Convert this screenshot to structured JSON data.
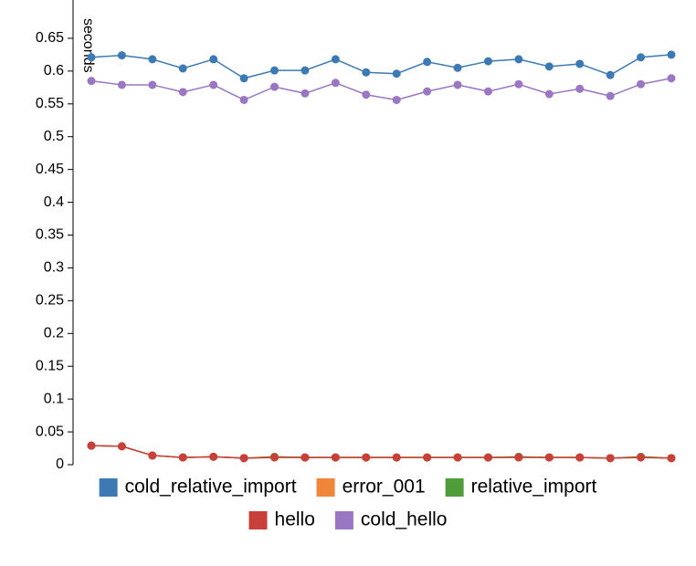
{
  "chart_data": {
    "type": "line",
    "y_label": "seconds",
    "x": [
      0,
      1,
      2,
      3,
      4,
      5,
      6,
      7,
      8,
      9,
      10,
      11,
      12,
      13,
      14,
      15,
      16,
      17,
      18,
      19
    ],
    "xlim": [
      0,
      19
    ],
    "ylim": [
      0,
      0.7
    ],
    "yticks": [
      0,
      0.05,
      0.1,
      0.15,
      0.2,
      0.25,
      0.3,
      0.35,
      0.4,
      0.45,
      0.5,
      0.55,
      0.6,
      0.65
    ],
    "series": [
      {
        "name": "cold_relative_import",
        "color": "#3d7ab3",
        "values": [
          0.621,
          0.624,
          0.618,
          0.604,
          0.618,
          0.589,
          0.601,
          0.601,
          0.618,
          0.598,
          0.596,
          0.614,
          0.605,
          0.615,
          0.618,
          0.607,
          0.611,
          0.594,
          0.621,
          0.625
        ]
      },
      {
        "name": "error_001",
        "color": "#f0863a",
        "values": [
          0.029,
          0.028,
          0.014,
          0.011,
          0.012,
          0.01,
          0.012,
          0.011,
          0.011,
          0.011,
          0.011,
          0.011,
          0.011,
          0.011,
          0.012,
          0.011,
          0.011,
          0.01,
          0.012,
          0.01
        ]
      },
      {
        "name": "relative_import",
        "color": "#4f9c3a",
        "values": [
          0.029,
          0.028,
          0.014,
          0.011,
          0.012,
          0.01,
          0.012,
          0.011,
          0.011,
          0.011,
          0.011,
          0.011,
          0.011,
          0.011,
          0.012,
          0.011,
          0.011,
          0.01,
          0.012,
          0.01
        ]
      },
      {
        "name": "hello",
        "color": "#c9403a",
        "values": [
          0.029,
          0.028,
          0.014,
          0.011,
          0.012,
          0.01,
          0.011,
          0.011,
          0.011,
          0.011,
          0.011,
          0.011,
          0.011,
          0.011,
          0.011,
          0.011,
          0.011,
          0.01,
          0.011,
          0.01
        ]
      },
      {
        "name": "cold_hello",
        "color": "#9b76c2",
        "values": [
          0.585,
          0.579,
          0.579,
          0.568,
          0.579,
          0.556,
          0.576,
          0.566,
          0.582,
          0.564,
          0.556,
          0.569,
          0.579,
          0.569,
          0.58,
          0.565,
          0.573,
          0.562,
          0.58,
          0.589
        ]
      }
    ]
  }
}
